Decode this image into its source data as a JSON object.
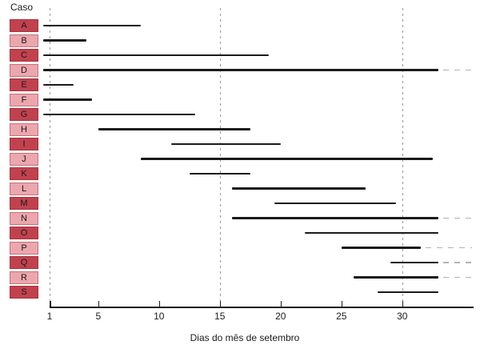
{
  "page": {
    "y_axis_header": "Caso",
    "x_axis_label": "Dias do mês de setembro"
  },
  "colors": {
    "case_box_dark": "#c1424e",
    "case_box_light": "#eca6ad",
    "bar": "#1a1a1a",
    "gridline": "#9a9a9a",
    "continuation_dash": "#b3b3b3",
    "axis": "#1a1a1a",
    "text": "#1a1a1a"
  },
  "chart_data": {
    "type": "bar",
    "subtype": "gantt-range",
    "orientation": "horizontal",
    "title": "",
    "xlabel": "Dias do mês de setembro",
    "ylabel": "Caso",
    "x_ticks": [
      1,
      5,
      10,
      15,
      20,
      25,
      30
    ],
    "xlim": [
      0.5,
      35
    ],
    "gridlines_at_days": [
      1,
      15,
      30
    ],
    "grid_style": "dashed-vertical",
    "legend": "none",
    "categories": [
      "A",
      "B",
      "C",
      "D",
      "E",
      "F",
      "G",
      "H",
      "I",
      "J",
      "K",
      "L",
      "M",
      "N",
      "O",
      "P",
      "Q",
      "R",
      "S"
    ],
    "rows": [
      {
        "label": "A",
        "start_day": 0.5,
        "end_day": 8.5,
        "continues_past_right_edge": false,
        "box_shade": "dark"
      },
      {
        "label": "B",
        "start_day": 0.5,
        "end_day": 4,
        "continues_past_right_edge": false,
        "box_shade": "light"
      },
      {
        "label": "C",
        "start_day": 0.5,
        "end_day": 19,
        "continues_past_right_edge": false,
        "box_shade": "dark"
      },
      {
        "label": "D",
        "start_day": 0.5,
        "end_day": 33,
        "continues_past_right_edge": true,
        "box_shade": "light"
      },
      {
        "label": "E",
        "start_day": 0.5,
        "end_day": 3,
        "continues_past_right_edge": false,
        "box_shade": "dark"
      },
      {
        "label": "F",
        "start_day": 0.5,
        "end_day": 4.5,
        "continues_past_right_edge": false,
        "box_shade": "light"
      },
      {
        "label": "G",
        "start_day": 0.5,
        "end_day": 13,
        "continues_past_right_edge": false,
        "box_shade": "dark"
      },
      {
        "label": "H",
        "start_day": 5,
        "end_day": 17.5,
        "continues_past_right_edge": false,
        "box_shade": "light"
      },
      {
        "label": "I",
        "start_day": 11,
        "end_day": 20,
        "continues_past_right_edge": false,
        "box_shade": "dark"
      },
      {
        "label": "J",
        "start_day": 8.5,
        "end_day": 32.5,
        "continues_past_right_edge": false,
        "box_shade": "light"
      },
      {
        "label": "K",
        "start_day": 12.5,
        "end_day": 17.5,
        "continues_past_right_edge": false,
        "box_shade": "dark"
      },
      {
        "label": "L",
        "start_day": 16,
        "end_day": 27,
        "continues_past_right_edge": false,
        "box_shade": "light"
      },
      {
        "label": "M",
        "start_day": 19.5,
        "end_day": 29.5,
        "continues_past_right_edge": false,
        "box_shade": "dark"
      },
      {
        "label": "N",
        "start_day": 16,
        "end_day": 33,
        "continues_past_right_edge": true,
        "box_shade": "light"
      },
      {
        "label": "O",
        "start_day": 22,
        "end_day": 33,
        "continues_past_right_edge": false,
        "box_shade": "dark"
      },
      {
        "label": "P",
        "start_day": 25,
        "end_day": 31.5,
        "continues_past_right_edge": true,
        "box_shade": "light"
      },
      {
        "label": "Q",
        "start_day": 29,
        "end_day": 33,
        "continues_past_right_edge": true,
        "box_shade": "dark"
      },
      {
        "label": "R",
        "start_day": 26,
        "end_day": 33,
        "continues_past_right_edge": true,
        "box_shade": "light"
      },
      {
        "label": "S",
        "start_day": 28,
        "end_day": 33,
        "continues_past_right_edge": false,
        "box_shade": "dark"
      }
    ]
  }
}
